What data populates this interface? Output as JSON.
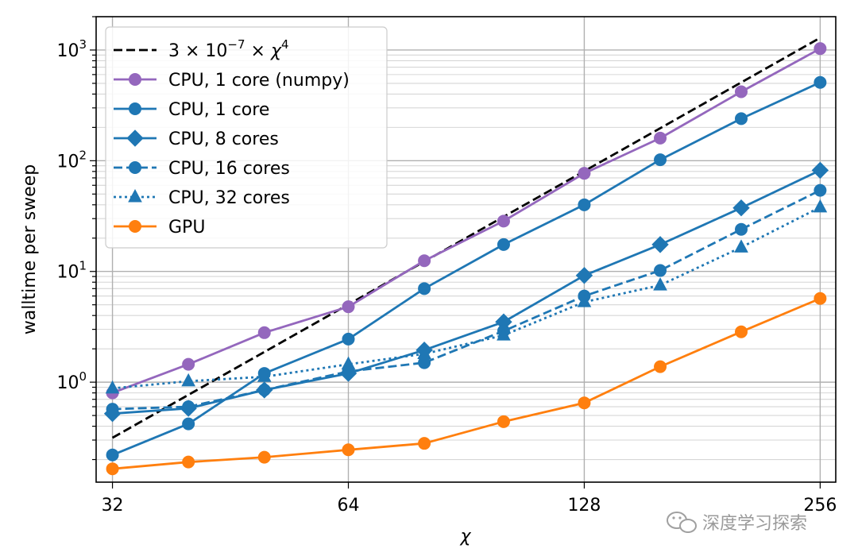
{
  "chart_data": {
    "type": "line",
    "xlabel": "χ",
    "ylabel": "walltime per sweep",
    "xscale": "log2",
    "yscale": "log10",
    "xlim": [
      30.5,
      268
    ],
    "ylim": [
      0.125,
      2000
    ],
    "x": [
      32,
      40,
      50,
      64,
      80,
      101,
      128,
      160,
      203,
      256
    ],
    "xticks": [
      32,
      64,
      128,
      256
    ],
    "xtick_labels": [
      "32",
      "64",
      "128",
      "256"
    ],
    "yticks": [
      1,
      10,
      100,
      1000
    ],
    "ytick_labels": [
      {
        "base": "10",
        "exp": "0"
      },
      {
        "base": "10",
        "exp": "1"
      },
      {
        "base": "10",
        "exp": "2"
      },
      {
        "base": "10",
        "exp": "3"
      }
    ],
    "grid": true,
    "legend_position": "top-left",
    "reference_line": {
      "name_parts": {
        "coef": "3 × 10",
        "exp": "−7",
        "mid": " × χ",
        "pow": "4"
      },
      "coefficient": 3e-07,
      "power": 4,
      "x_range": [
        32,
        256
      ],
      "color": "#000000",
      "style": "dashed"
    },
    "series": [
      {
        "name": "CPU, 1 core (numpy)",
        "color": "#9467bd",
        "marker": "circle",
        "linestyle": "solid",
        "values": [
          0.8,
          1.45,
          2.8,
          4.8,
          12.5,
          28.5,
          77,
          160,
          420,
          1030
        ]
      },
      {
        "name": "CPU, 1 core",
        "color": "#1f77b4",
        "marker": "circle",
        "linestyle": "solid",
        "values": [
          0.22,
          0.42,
          1.2,
          2.45,
          7.0,
          17.5,
          40,
          102,
          240,
          510
        ]
      },
      {
        "name": "CPU, 8 cores",
        "color": "#1f77b4",
        "marker": "diamond",
        "linestyle": "solid",
        "values": [
          0.52,
          0.58,
          0.85,
          1.2,
          1.95,
          3.5,
          9.2,
          17.5,
          37.5,
          82
        ]
      },
      {
        "name": "CPU, 16 cores",
        "color": "#1f77b4",
        "marker": "circle",
        "linestyle": "dashed",
        "values": [
          0.57,
          0.6,
          0.85,
          1.25,
          1.5,
          2.9,
          6.0,
          10.2,
          24,
          54
        ]
      },
      {
        "name": "CPU, 32 cores",
        "color": "#1f77b4",
        "marker": "triangle",
        "linestyle": "dotted",
        "values": [
          0.88,
          1.02,
          1.12,
          1.45,
          1.8,
          2.65,
          5.3,
          7.5,
          16.5,
          38
        ]
      },
      {
        "name": "GPU",
        "color": "#ff7f0e",
        "marker": "circle",
        "linestyle": "solid",
        "values": [
          0.165,
          0.19,
          0.21,
          0.245,
          0.28,
          0.44,
          0.65,
          1.38,
          2.85,
          5.7
        ]
      }
    ]
  },
  "watermark": {
    "text": "深度学习探索",
    "icon": "wechat-icon"
  }
}
